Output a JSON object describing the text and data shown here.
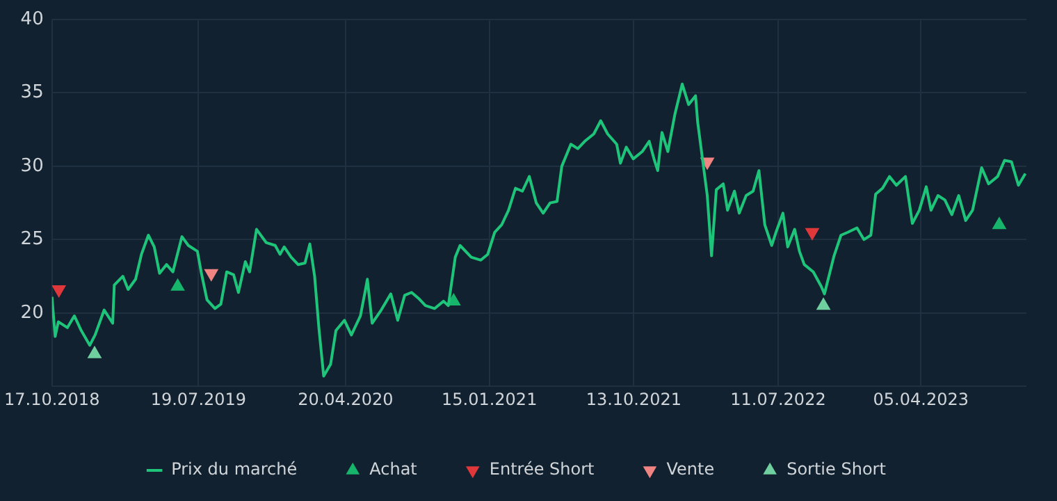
{
  "chart_data": {
    "type": "line",
    "xlim": [
      "2018-10-17",
      "2023-10-20"
    ],
    "xticks": [
      {
        "value": "2018-10-17",
        "label": "17.10.2018"
      },
      {
        "value": "2019-07-19",
        "label": "19.07.2019"
      },
      {
        "value": "2020-04-20",
        "label": "20.04.2020"
      },
      {
        "value": "2021-01-15",
        "label": "15.01.2021"
      },
      {
        "value": "2021-10-13",
        "label": "13.10.2021"
      },
      {
        "value": "2022-07-11",
        "label": "11.07.2022"
      },
      {
        "value": "2023-04-05",
        "label": "05.04.2023"
      }
    ],
    "ylim": [
      15,
      40
    ],
    "yticks": [
      {
        "value": 15,
        "label": null
      },
      20,
      25,
      30,
      35,
      40
    ],
    "grid": true,
    "legend": "bottom",
    "series": [
      {
        "name": "Prix du marché",
        "color": "#1ec47a",
        "marker": "none",
        "x": [
          "2018-10-17",
          "2018-10-23",
          "2018-10-29",
          "2018-11-15",
          "2018-11-28",
          "2018-12-11",
          "2018-12-27",
          "2019-01-06",
          "2019-01-23",
          "2019-02-08",
          "2019-02-11",
          "2019-02-27",
          "2019-03-09",
          "2019-03-23",
          "2019-04-03",
          "2019-04-16",
          "2019-04-27",
          "2019-05-07",
          "2019-05-20",
          "2019-06-01",
          "2019-06-18",
          "2019-06-30",
          "2019-07-17",
          "2019-07-24",
          "2019-08-04",
          "2019-08-19",
          "2019-08-30",
          "2019-09-10",
          "2019-09-23",
          "2019-10-02",
          "2019-10-15",
          "2019-10-23",
          "2019-11-05",
          "2019-11-23",
          "2019-12-10",
          "2019-12-19",
          "2019-12-27",
          "2020-01-09",
          "2020-01-22",
          "2020-02-04",
          "2020-02-13",
          "2020-02-22",
          "2020-03-01",
          "2020-03-10",
          "2020-03-23",
          "2020-04-02",
          "2020-04-18",
          "2020-05-01",
          "2020-05-14",
          "2020-05-18",
          "2020-05-27",
          "2020-05-31",
          "2020-06-09",
          "2020-06-26",
          "2020-07-14",
          "2020-07-27",
          "2020-08-09",
          "2020-08-22",
          "2020-09-04",
          "2020-09-17",
          "2020-10-04",
          "2020-10-21",
          "2020-10-30",
          "2020-11-12",
          "2020-11-21",
          "2020-12-12",
          "2020-12-30",
          "2021-01-12",
          "2021-01-25",
          "2021-02-07",
          "2021-02-20",
          "2021-03-05",
          "2021-03-18",
          "2021-03-31",
          "2021-04-13",
          "2021-04-26",
          "2021-05-09",
          "2021-05-22",
          "2021-05-31",
          "2021-06-17",
          "2021-06-30",
          "2021-07-13",
          "2021-07-30",
          "2021-08-12",
          "2021-08-25",
          "2021-09-11",
          "2021-09-18",
          "2021-09-29",
          "2021-10-12",
          "2021-10-29",
          "2021-11-11",
          "2021-11-20",
          "2021-11-27",
          "2021-12-05",
          "2021-12-16",
          "2021-12-29",
          "2022-01-12",
          "2022-01-24",
          "2022-02-06",
          "2022-02-10",
          "2022-02-19",
          "2022-02-28",
          "2022-03-08",
          "2022-03-17",
          "2022-03-30",
          "2022-04-07",
          "2022-04-20",
          "2022-04-29",
          "2022-05-12",
          "2022-05-25",
          "2022-06-05",
          "2022-06-16",
          "2022-06-29",
          "2022-07-07",
          "2022-07-20",
          "2022-07-29",
          "2022-08-11",
          "2022-08-20",
          "2022-08-29",
          "2022-09-15",
          "2022-09-30",
          "2022-10-06",
          "2022-10-24",
          "2022-11-06",
          "2022-11-19",
          "2022-12-06",
          "2022-12-19",
          "2023-01-01",
          "2023-01-10",
          "2023-01-23",
          "2023-02-05",
          "2023-02-18",
          "2023-03-07",
          "2023-03-20",
          "2023-04-02",
          "2023-04-15",
          "2023-04-24",
          "2023-05-07",
          "2023-05-20",
          "2023-06-02",
          "2023-06-15",
          "2023-06-28",
          "2023-07-11",
          "2023-07-28",
          "2023-08-10",
          "2023-08-27",
          "2023-09-09",
          "2023-09-22",
          "2023-10-05",
          "2023-10-18"
        ],
        "values": [
          21.1,
          18.4,
          19.4,
          19.0,
          19.8,
          18.8,
          17.8,
          18.5,
          20.2,
          19.3,
          21.9,
          22.5,
          21.6,
          22.3,
          24.0,
          25.3,
          24.5,
          22.7,
          23.3,
          22.8,
          25.2,
          24.6,
          24.2,
          22.8,
          20.9,
          20.3,
          20.6,
          22.8,
          22.6,
          21.4,
          23.5,
          22.8,
          25.7,
          24.8,
          24.6,
          24.0,
          24.5,
          23.8,
          23.3,
          23.4,
          24.7,
          22.5,
          19.0,
          15.7,
          16.5,
          18.8,
          19.5,
          18.5,
          19.5,
          19.8,
          21.5,
          22.3,
          19.3,
          20.2,
          21.3,
          19.5,
          21.2,
          21.4,
          21.0,
          20.5,
          20.3,
          20.8,
          20.5,
          23.8,
          24.6,
          23.8,
          23.6,
          24.0,
          25.5,
          26.0,
          27.0,
          28.5,
          28.3,
          29.3,
          27.5,
          26.8,
          27.5,
          27.6,
          30.0,
          31.5,
          31.2,
          31.7,
          32.2,
          33.1,
          32.2,
          31.5,
          30.2,
          31.3,
          30.5,
          31.0,
          31.7,
          30.5,
          29.7,
          32.3,
          31.0,
          33.5,
          35.6,
          34.2,
          34.8,
          33.0,
          30.5,
          28.0,
          23.9,
          28.4,
          28.8,
          27.0,
          28.3,
          26.8,
          28.0,
          28.3,
          29.7,
          26.0,
          24.6,
          25.5,
          26.8,
          24.5,
          25.7,
          24.2,
          23.3,
          22.8,
          21.8,
          21.3,
          23.9,
          25.3,
          25.5,
          25.8,
          25.0,
          25.3,
          28.1,
          28.5,
          29.3,
          28.7,
          29.3,
          26.1,
          27.0,
          28.6,
          27.0,
          28.0,
          27.7,
          26.7,
          28.0,
          26.3,
          27.0,
          29.9,
          28.8,
          29.3,
          30.4,
          30.3,
          28.7,
          29.5
        ]
      },
      {
        "name": "Achat",
        "type": "scatter",
        "color": "#17b56b",
        "marker": "triangle",
        "x": [
          "2019-06-10",
          "2020-11-09",
          "2023-08-30"
        ],
        "values": [
          21.8,
          20.8,
          26.0
        ]
      },
      {
        "name": "Entrée Short",
        "type": "scatter",
        "color": "#e0383a",
        "marker": "triangle_down",
        "x": [
          "2018-10-30",
          "2022-09-13"
        ],
        "values": [
          21.6,
          25.5
        ]
      },
      {
        "name": "Vente",
        "type": "scatter",
        "color": "#f08482",
        "marker": "triangle_down",
        "x": [
          "2019-08-12",
          "2022-02-28"
        ],
        "values": [
          22.7,
          30.3
        ]
      },
      {
        "name": "Sortie Short",
        "type": "scatter",
        "color": "#6fcf9f",
        "marker": "triangle",
        "x": [
          "2019-01-05",
          "2022-10-04"
        ],
        "values": [
          17.2,
          20.5
        ]
      }
    ]
  }
}
